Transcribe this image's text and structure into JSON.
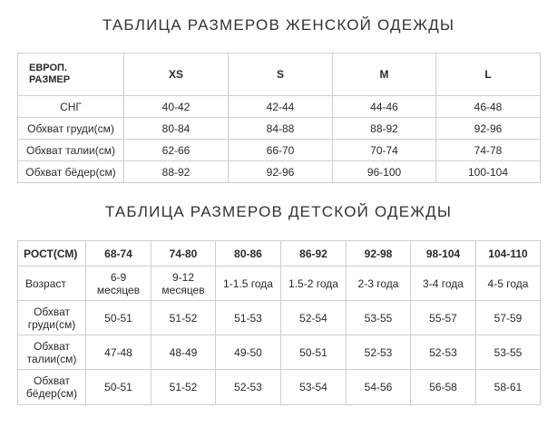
{
  "women": {
    "title": "ТАБЛИЦА РАЗМЕРОВ ЖЕНСКОЙ ОДЕЖДЫ",
    "corner_label_line1": "ЕВРОП.",
    "corner_label_line2": "РАЗМЕР",
    "headers": [
      "XS",
      "S",
      "M",
      "L"
    ],
    "rows": [
      {
        "label": "СНГ",
        "values": [
          "40-42",
          "42-44",
          "44-46",
          "46-48"
        ]
      },
      {
        "label": "Обхват груди(см)",
        "values": [
          "80-84",
          "84-88",
          "88-92",
          "92-96"
        ]
      },
      {
        "label": "Обхват талии(см)",
        "values": [
          "62-66",
          "66-70",
          "70-74",
          "74-78"
        ]
      },
      {
        "label": "Обхват бёдер(см)",
        "values": [
          "88-92",
          "92-96",
          "96-100",
          "100-104"
        ]
      }
    ]
  },
  "kids": {
    "title": "ТАБЛИЦА РАЗМЕРОВ ДЕТСКОЙ ОДЕЖДЫ",
    "corner_label": "РОСТ(СМ)",
    "headers": [
      "68-74",
      "74-80",
      "80-86",
      "86-92",
      "92-98",
      "98-104",
      "104-110"
    ],
    "age_row": {
      "label": "Возраст",
      "values": [
        {
          "line1": "6-9",
          "line2": "месяцев"
        },
        {
          "line1": "9-12",
          "line2": "месяцев"
        },
        {
          "line1": "1-1.5 года",
          "line2": ""
        },
        {
          "line1": "1.5-2 года",
          "line2": ""
        },
        {
          "line1": "2-3 года",
          "line2": ""
        },
        {
          "line1": "3-4 года",
          "line2": ""
        },
        {
          "line1": "4-5 года",
          "line2": ""
        }
      ]
    },
    "rows": [
      {
        "label_line1": "Обхват",
        "label_line2": "груди(см)",
        "values": [
          "50-51",
          "51-52",
          "51-53",
          "52-54",
          "53-55",
          "55-57",
          "57-59"
        ]
      },
      {
        "label_line1": "Обхват",
        "label_line2": "талии(см)",
        "values": [
          "47-48",
          "48-49",
          "49-50",
          "50-51",
          "52-53",
          "52-53",
          "53-55"
        ]
      },
      {
        "label_line1": "Обхват",
        "label_line2": "бёдер(см)",
        "values": [
          "50-51",
          "51-52",
          "52-53",
          "53-54",
          "54-56",
          "56-58",
          "58-61"
        ]
      }
    ]
  }
}
